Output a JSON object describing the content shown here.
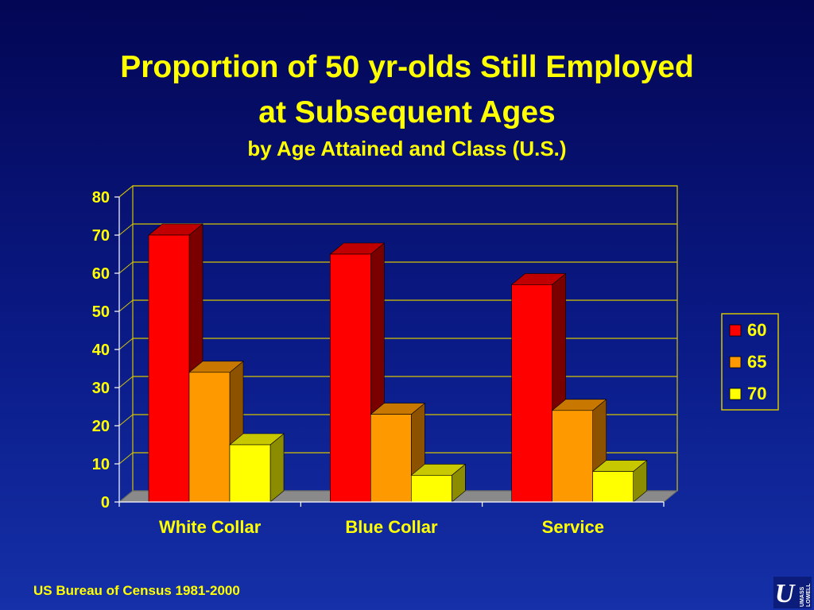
{
  "title_line1": "Proportion of 50 yr-olds Still Employed",
  "title_line2": "at Subsequent Ages",
  "subtitle": "by Age Attained and Class (U.S.)",
  "source": "US Bureau of Census 1981-2000",
  "logo": {
    "text_main": "U",
    "text_side_1": "UMASS",
    "text_side_2": "LOWELL"
  },
  "colors": {
    "background": "#0a1a86",
    "text": "#ffff00",
    "grid": "#d4c400",
    "axis": "#ffffff",
    "floor": "#8a8a8a"
  },
  "chart_data": {
    "type": "bar",
    "style": "3d-clustered",
    "categories": [
      "White Collar",
      "Blue Collar",
      "Service"
    ],
    "series": [
      {
        "name": "60",
        "values": [
          70,
          65,
          57
        ],
        "color": "#ff0000",
        "side": "#7a0000",
        "top": "#c00000"
      },
      {
        "name": "65",
        "values": [
          34,
          23,
          24
        ],
        "color": "#ff9900",
        "side": "#8c5200",
        "top": "#c87800"
      },
      {
        "name": "70",
        "values": [
          15,
          7,
          8
        ],
        "color": "#ffff00",
        "side": "#8c8c00",
        "top": "#c8c800"
      }
    ],
    "y_ticks": [
      "0",
      "10",
      "20",
      "30",
      "40",
      "50",
      "60",
      "70",
      "80"
    ],
    "ylim": [
      0,
      80
    ],
    "grid": true,
    "legend": "right"
  }
}
